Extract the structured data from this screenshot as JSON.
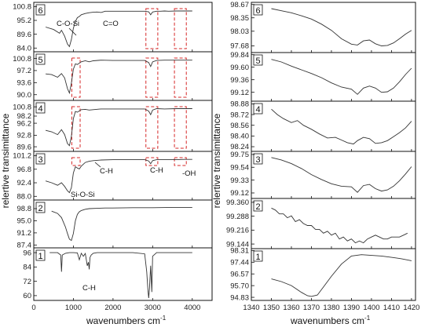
{
  "figure": {
    "left_xlabel": "wavenumbers cm",
    "left_xlabel_sup": "-1",
    "right_xlabel": "wavenumbers cm",
    "right_xlabel_sup": "-1",
    "ylabel": "relertive transimittance",
    "line_color": "#333333",
    "box_color": "#d62828"
  },
  "chart_data": [
    {
      "type": "line",
      "side": "left",
      "panel_label": "6",
      "xlim": [
        0,
        4500
      ],
      "xticks": [],
      "ylim": [
        82.5,
        102.5
      ],
      "yticks": [
        100.8,
        95.2,
        89.6,
        84.0
      ],
      "ytick_labels": [
        "100.8",
        "95.2",
        "89.6",
        "84.0"
      ],
      "x": [
        300,
        500,
        650,
        700,
        780,
        850,
        900,
        950,
        1000,
        1050,
        1100,
        1150,
        1200,
        1300,
        1400,
        1500,
        1600,
        1700,
        1800,
        2000,
        2200,
        2400,
        2600,
        2800,
        2900,
        2950,
        3000,
        3100,
        3200,
        3300,
        3400,
        3600,
        3800,
        4000
      ],
      "y": [
        92.5,
        91.5,
        90.0,
        91.2,
        88.8,
        85.6,
        84.6,
        87.5,
        92.0,
        94.8,
        96.3,
        96.8,
        97.5,
        98.0,
        98.3,
        98.5,
        98.6,
        98.4,
        98.9,
        98.9,
        98.9,
        98.9,
        98.9,
        98.9,
        98.7,
        97.5,
        98.6,
        98.9,
        98.9,
        99.0,
        98.9,
        99.0,
        99.0,
        99.0
      ],
      "annotations": [
        "C-O-Si",
        "C=O"
      ],
      "boxes": [
        {
          "x": [
            2830,
            3130
          ]
        },
        {
          "x": [
            3550,
            3850
          ]
        }
      ]
    },
    {
      "type": "line",
      "side": "left",
      "panel_label": "5",
      "xlim": [
        0,
        4500
      ],
      "xticks": [],
      "ylim": [
        88.3,
        102.8
      ],
      "yticks": [
        100.8,
        97.2,
        93.6,
        90.0
      ],
      "ytick_labels": [
        "100.8",
        "97.2",
        "93.6",
        "90.0"
      ],
      "x": [
        300,
        450,
        600,
        700,
        780,
        850,
        900,
        950,
        1000,
        1050,
        1100,
        1200,
        1300,
        1400,
        1500,
        1700,
        2000,
        2500,
        2800,
        2900,
        2950,
        3000,
        3100,
        3300,
        3600,
        3800,
        4000
      ],
      "y": [
        96.2,
        96.0,
        95.2,
        96.3,
        95.0,
        91.8,
        90.5,
        93.5,
        97.6,
        99.2,
        99.0,
        99.8,
        100.1,
        99.8,
        100.1,
        100.3,
        100.2,
        100.2,
        100.2,
        99.6,
        98.4,
        99.8,
        100.2,
        100.3,
        100.3,
        100.3,
        100.3
      ],
      "annotations": [],
      "boxes": [
        {
          "x": [
            960,
            1170
          ]
        },
        {
          "x": [
            2830,
            3130
          ]
        },
        {
          "x": [
            3550,
            3850
          ]
        }
      ]
    },
    {
      "type": "line",
      "side": "left",
      "panel_label": "4",
      "xlim": [
        0,
        4500
      ],
      "xticks": [],
      "ylim": [
        88.3,
        102.6
      ],
      "yticks": [
        100.8,
        98.2,
        96.2,
        92.8,
        89.6
      ],
      "ytick_labels": [
        "100.8",
        "98.2",
        "96.2",
        "92.8",
        "89.6"
      ],
      "x": [
        300,
        450,
        600,
        700,
        780,
        850,
        900,
        950,
        1000,
        1050,
        1100,
        1200,
        1300,
        1400,
        1500,
        1700,
        2000,
        2500,
        2800,
        2900,
        2950,
        3000,
        3100,
        3300,
        3600,
        3800,
        4000
      ],
      "y": [
        94.2,
        93.8,
        93.0,
        94.4,
        93.0,
        90.5,
        89.9,
        92.5,
        97.5,
        99.5,
        99.3,
        100.0,
        100.1,
        99.9,
        100.0,
        100.2,
        100.2,
        100.2,
        100.2,
        99.6,
        98.6,
        99.9,
        100.3,
        100.2,
        100.3,
        100.3,
        100.3
      ],
      "annotations": [],
      "boxes": [
        {
          "x": [
            960,
            1170
          ]
        },
        {
          "x": [
            2830,
            3130
          ]
        },
        {
          "x": [
            3550,
            3850
          ]
        }
      ]
    },
    {
      "type": "line",
      "side": "left",
      "panel_label": "3",
      "xlim": [
        0,
        4500
      ],
      "xticks": [],
      "ylim": [
        86.8,
        102.6
      ],
      "yticks": [
        101.2,
        96.8,
        92.4,
        88.0
      ],
      "ytick_labels": [
        "101.2",
        "96.8",
        "92.4",
        "88.0"
      ],
      "x": [
        300,
        450,
        600,
        700,
        780,
        850,
        900,
        950,
        1000,
        1050,
        1100,
        1150,
        1200,
        1300,
        1400,
        1500,
        1700,
        2000,
        2500,
        2800,
        2900,
        2950,
        3000,
        3100,
        3300,
        3600,
        3800,
        4000
      ],
      "y": [
        93.0,
        92.4,
        91.6,
        92.4,
        91.2,
        89.8,
        89.2,
        90.8,
        95.6,
        97.6,
        97.2,
        96.9,
        97.8,
        99.0,
        99.4,
        99.6,
        99.8,
        99.9,
        99.9,
        99.9,
        99.5,
        98.6,
        99.6,
        99.9,
        99.9,
        99.9,
        100.0,
        100.0
      ],
      "annotations": [
        "C-H",
        "Si-O-Si",
        "C-H",
        "-OH"
      ],
      "boxes": [
        {
          "x": [
            960,
            1170
          ]
        },
        {
          "x": [
            2830,
            3130
          ]
        },
        {
          "x": [
            3550,
            3850
          ]
        }
      ]
    },
    {
      "type": "line",
      "side": "left",
      "panel_label": "2",
      "xlim": [
        0,
        4500
      ],
      "xticks": [],
      "ylim": [
        86.5,
        101.5
      ],
      "yticks": [
        98.8,
        95.0,
        91.2,
        87.4
      ],
      "ytick_labels": [
        "98.8",
        "95.0",
        "91.2",
        "87.4"
      ],
      "x": [
        450,
        600,
        700,
        800,
        850,
        900,
        950,
        1000,
        1050,
        1100,
        1150,
        1200,
        1300,
        1400,
        1600,
        1800,
        2000,
        2500,
        3000,
        3500,
        4000
      ],
      "y": [
        98.0,
        97.3,
        96.0,
        93.0,
        91.0,
        89.2,
        88.8,
        91.0,
        95.0,
        97.0,
        97.8,
        98.2,
        98.6,
        98.8,
        98.9,
        99.0,
        99.0,
        99.1,
        99.1,
        99.2,
        99.2
      ],
      "annotations": [],
      "boxes": []
    },
    {
      "type": "line",
      "side": "left",
      "panel_label": "1",
      "xlim": [
        0,
        4500
      ],
      "xticks": [
        0,
        1000,
        2000,
        3000,
        4000
      ],
      "xtick_labels": [
        "0",
        "1000",
        "2000",
        "3000",
        "4000"
      ],
      "ylim": [
        56,
        100
      ],
      "yticks": [
        96,
        84,
        72,
        60
      ],
      "ytick_labels": [
        "96",
        "84",
        "72",
        "60"
      ],
      "x": [
        400,
        600,
        680,
        700,
        720,
        800,
        900,
        1000,
        1100,
        1150,
        1200,
        1250,
        1300,
        1350,
        1380,
        1400,
        1420,
        1450,
        1500,
        1600,
        1700,
        1800,
        2000,
        2500,
        2800,
        2850,
        2880,
        2900,
        2920,
        2950,
        2980,
        3000,
        3100,
        3500,
        4000
      ],
      "y": [
        96,
        96,
        94,
        80,
        94,
        95.5,
        96,
        96,
        95.8,
        90,
        95.5,
        93,
        95.3,
        85,
        88,
        82,
        92,
        94,
        95.5,
        96,
        96,
        96,
        96,
        96,
        95,
        80,
        65,
        58,
        66,
        85,
        63,
        93,
        96,
        96,
        96
      ],
      "annotations": [
        "C-H"
      ],
      "boxes": []
    },
    {
      "type": "line",
      "side": "right",
      "panel_label": "6",
      "xlim": [
        1340,
        1422
      ],
      "xticks": [],
      "ylim": [
        97.52,
        98.72
      ],
      "yticks": [
        98.67,
        98.35,
        98.03,
        97.68
      ],
      "ytick_labels": [
        "98.67",
        "98.35",
        "98.03",
        "97.68"
      ],
      "x": [
        1350,
        1355,
        1360,
        1365,
        1370,
        1375,
        1380,
        1385,
        1390,
        1393,
        1396,
        1399,
        1402,
        1405,
        1408,
        1411,
        1414,
        1417,
        1420
      ],
      "y": [
        98.57,
        98.52,
        98.47,
        98.4,
        98.32,
        98.2,
        98.05,
        97.85,
        97.72,
        97.7,
        97.8,
        97.82,
        97.73,
        97.68,
        97.69,
        97.75,
        97.85,
        97.96,
        98.05
      ],
      "annotations": [],
      "boxes": []
    },
    {
      "type": "line",
      "side": "right",
      "panel_label": "5",
      "xlim": [
        1340,
        1422
      ],
      "xticks": [],
      "ylim": [
        98.95,
        99.88
      ],
      "yticks": [
        99.84,
        99.6,
        99.36,
        99.12
      ],
      "ytick_labels": [
        "99.84",
        "99.60",
        "99.36",
        "99.12"
      ],
      "x": [
        1350,
        1355,
        1360,
        1365,
        1370,
        1375,
        1380,
        1385,
        1390,
        1393,
        1396,
        1399,
        1402,
        1405,
        1408,
        1411,
        1414,
        1417,
        1420
      ],
      "y": [
        99.75,
        99.7,
        99.62,
        99.55,
        99.48,
        99.4,
        99.3,
        99.22,
        99.18,
        99.08,
        99.2,
        99.24,
        99.2,
        99.12,
        99.13,
        99.2,
        99.32,
        99.46,
        99.58
      ],
      "annotations": [],
      "boxes": []
    },
    {
      "type": "line",
      "side": "right",
      "panel_label": "4",
      "xlim": [
        1340,
        1422
      ],
      "xticks": [],
      "ylim": [
        98.17,
        98.92
      ],
      "yticks": [
        98.88,
        98.72,
        98.56,
        98.4,
        98.24
      ],
      "ytick_labels": [
        "98.88",
        "98.72",
        "98.56",
        "98.40",
        "98.24"
      ],
      "x": [
        1350,
        1353,
        1356,
        1360,
        1363,
        1366,
        1370,
        1374,
        1378,
        1382,
        1385,
        1388,
        1391,
        1393,
        1396,
        1399,
        1402,
        1405,
        1408,
        1411,
        1414,
        1417,
        1420
      ],
      "y": [
        98.8,
        98.72,
        98.66,
        98.6,
        98.63,
        98.56,
        98.5,
        98.43,
        98.37,
        98.38,
        98.34,
        98.3,
        98.28,
        98.33,
        98.38,
        98.36,
        98.29,
        98.3,
        98.33,
        98.39,
        98.45,
        98.52,
        98.62
      ],
      "annotations": [],
      "boxes": []
    },
    {
      "type": "line",
      "side": "right",
      "panel_label": "3",
      "xlim": [
        1340,
        1422
      ],
      "xticks": [],
      "ylim": [
        99.03,
        99.8
      ],
      "yticks": [
        99.75,
        99.54,
        99.33,
        99.12
      ],
      "ytick_labels": [
        "99.75",
        "99.54",
        "99.33",
        "99.12"
      ],
      "x": [
        1350,
        1355,
        1360,
        1365,
        1370,
        1375,
        1380,
        1385,
        1390,
        1393,
        1396,
        1399,
        1402,
        1405,
        1408,
        1411,
        1414,
        1417,
        1420
      ],
      "y": [
        99.7,
        99.66,
        99.6,
        99.52,
        99.42,
        99.34,
        99.27,
        99.23,
        99.22,
        99.13,
        99.24,
        99.26,
        99.19,
        99.15,
        99.17,
        99.23,
        99.32,
        99.43,
        99.55
      ],
      "annotations": [],
      "boxes": []
    },
    {
      "type": "line",
      "side": "right",
      "panel_label": "2",
      "xlim": [
        1340,
        1422
      ],
      "xticks": [],
      "ylim": [
        99.12,
        99.38
      ],
      "yticks": [
        99.36,
        99.288,
        99.216,
        99.144
      ],
      "ytick_labels": [
        "99.360",
        "99.288",
        "99.216",
        "99.144"
      ],
      "x": [
        1350,
        1352,
        1354,
        1356,
        1358,
        1360,
        1362,
        1364,
        1366,
        1368,
        1370,
        1372,
        1374,
        1376,
        1378,
        1380,
        1382,
        1384,
        1386,
        1388,
        1390,
        1392,
        1394,
        1396,
        1398,
        1400,
        1402,
        1404,
        1406,
        1408,
        1410,
        1412,
        1414,
        1416,
        1418
      ],
      "y": [
        99.33,
        99.32,
        99.3,
        99.3,
        99.28,
        99.29,
        99.26,
        99.27,
        99.25,
        99.24,
        99.24,
        99.22,
        99.22,
        99.2,
        99.21,
        99.19,
        99.2,
        99.17,
        99.18,
        99.16,
        99.17,
        99.15,
        99.16,
        99.15,
        99.17,
        99.18,
        99.19,
        99.18,
        99.17,
        99.17,
        99.18,
        99.18,
        99.18,
        99.19,
        99.2
      ],
      "annotations": [],
      "boxes": []
    },
    {
      "type": "line",
      "side": "right",
      "panel_label": "1",
      "xlim": [
        1340,
        1422
      ],
      "xticks": [
        1340,
        1350,
        1360,
        1370,
        1380,
        1390,
        1400,
        1410,
        1420
      ],
      "xtick_labels": [
        "1340",
        "1350",
        "1360",
        "1370",
        "1380",
        "1390",
        "1400",
        "1410",
        "1420"
      ],
      "ylim": [
        94.6,
        98.45
      ],
      "yticks": [
        98.31,
        97.44,
        96.57,
        95.7,
        94.83
      ],
      "ytick_labels": [
        "98.31",
        "97.44",
        "96.57",
        "95.70",
        "94.83"
      ],
      "x": [
        1350,
        1355,
        1360,
        1365,
        1368,
        1370,
        1373,
        1376,
        1380,
        1385,
        1390,
        1395,
        1400,
        1405,
        1410,
        1415,
        1420
      ],
      "y": [
        96.2,
        96.0,
        95.7,
        95.2,
        94.95,
        94.9,
        95.0,
        95.6,
        96.4,
        97.3,
        97.9,
        98.0,
        97.95,
        97.9,
        97.8,
        97.7,
        97.55
      ],
      "annotations": [],
      "boxes": []
    }
  ]
}
